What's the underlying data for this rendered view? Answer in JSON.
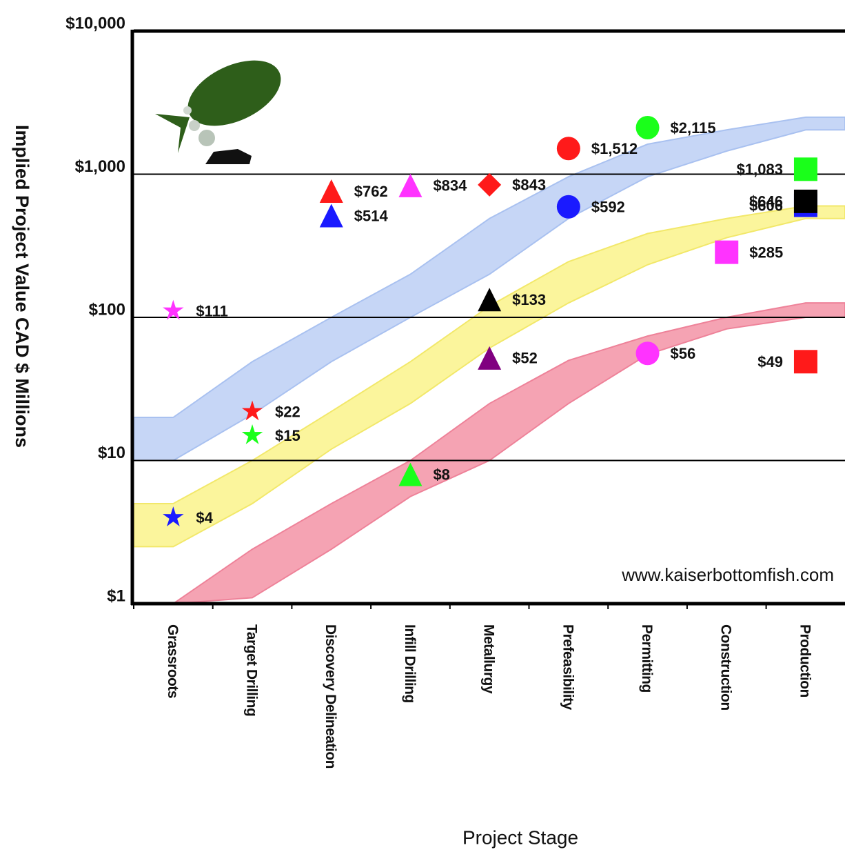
{
  "chart_data": {
    "type": "scatter",
    "y_axis_label": "Implied Project Value CAD $ Millions",
    "x_axis_label": "Project Stage",
    "watermark": "www.kaiserbottomfish.com",
    "log_scale": true,
    "grid": true,
    "categories": [
      "Grassroots",
      "Target Drilling",
      "Discovery Delineation",
      "Infill Drilling",
      "Metallurgy",
      "Prefeasibility",
      "Permitting",
      "Construction",
      "Production"
    ],
    "ylim": [
      1,
      10000
    ],
    "yticks": [
      {
        "value": 1,
        "label": "$1"
      },
      {
        "value": 10,
        "label": "$10"
      },
      {
        "value": 100,
        "label": "$100"
      },
      {
        "value": 1000,
        "label": "$1,000"
      },
      {
        "value": 10000,
        "label": "$10,000"
      }
    ],
    "bands": [
      {
        "color": "#c6d6f6",
        "edge": "#a9c1f0",
        "upper": [
          20,
          49,
          100,
          200,
          490,
          960,
          1620,
          2040,
          2500
        ],
        "lower": [
          10,
          21,
          49,
          100,
          200,
          490,
          960,
          1450,
          2040
        ]
      },
      {
        "color": "#fbf59c",
        "edge": "#f2e86a",
        "upper": [
          5,
          10,
          22,
          49,
          120,
          245,
          385,
          490,
          600
        ],
        "lower": [
          2.5,
          5,
          12,
          25,
          61,
          126,
          233,
          360,
          490
        ]
      },
      {
        "color": "#f5a3b3",
        "edge": "#ee8299",
        "upper": [
          1,
          2.4,
          5,
          10,
          25,
          50,
          74,
          100,
          126
        ],
        "lower": [
          1,
          1.1,
          2.4,
          5.6,
          10,
          25,
          55,
          83,
          100
        ]
      }
    ],
    "points": [
      {
        "category": "Grassroots",
        "value": 111,
        "value_label": "$111",
        "color": "#ff33ff",
        "marker": "star"
      },
      {
        "category": "Grassroots",
        "value": 4,
        "value_label": "$4",
        "color": "#1a1aff",
        "marker": "star"
      },
      {
        "category": "Target Drilling",
        "value": 22,
        "value_label": "$22",
        "color": "#ff1a1a",
        "marker": "star"
      },
      {
        "category": "Target Drilling",
        "value": 15,
        "value_label": "$15",
        "color": "#1aff1a",
        "marker": "star"
      },
      {
        "category": "Discovery Delineation",
        "value": 762,
        "value_label": "$762",
        "color": "#ff1a1a",
        "marker": "triangle"
      },
      {
        "category": "Discovery Delineation",
        "value": 514,
        "value_label": "$514",
        "color": "#1a1aff",
        "marker": "triangle"
      },
      {
        "category": "Infill Drilling",
        "value": 834,
        "value_label": "$834",
        "color": "#ff33ff",
        "marker": "triangle"
      },
      {
        "category": "Infill Drilling",
        "value": 8,
        "value_label": "$8",
        "color": "#1aff1a",
        "marker": "triangle"
      },
      {
        "category": "Metallurgy",
        "value": 843,
        "value_label": "$843",
        "color": "#ff1a1a",
        "marker": "diamond"
      },
      {
        "category": "Metallurgy",
        "value": 133,
        "value_label": "$133",
        "color": "#000000",
        "marker": "triangle"
      },
      {
        "category": "Metallurgy",
        "value": 52,
        "value_label": "$52",
        "color": "#800080",
        "marker": "triangle"
      },
      {
        "category": "Prefeasibility",
        "value": 1512,
        "value_label": "$1,512",
        "color": "#ff1a1a",
        "marker": "circle"
      },
      {
        "category": "Prefeasibility",
        "value": 592,
        "value_label": "$592",
        "color": "#1a1aff",
        "marker": "circle"
      },
      {
        "category": "Permitting",
        "value": 2115,
        "value_label": "$2,115",
        "color": "#1aff1a",
        "marker": "circle"
      },
      {
        "category": "Permitting",
        "value": 56,
        "value_label": "$56",
        "color": "#ff33ff",
        "marker": "circle"
      },
      {
        "category": "Construction",
        "value": 285,
        "value_label": "$285",
        "color": "#ff33ff",
        "marker": "square"
      },
      {
        "category": "Production",
        "value": 1083,
        "value_label": "$1,083",
        "color": "#1aff1a",
        "marker": "square"
      },
      {
        "category": "Production",
        "value": 606,
        "value_label": "$606",
        "color": "#1a1aff",
        "marker": "square"
      },
      {
        "category": "Production",
        "value": 646,
        "value_label": "$646",
        "color": "#000000",
        "marker": "square"
      },
      {
        "category": "Production",
        "value": 49,
        "value_label": "$49",
        "color": "#ff1a1a",
        "marker": "square"
      }
    ]
  }
}
